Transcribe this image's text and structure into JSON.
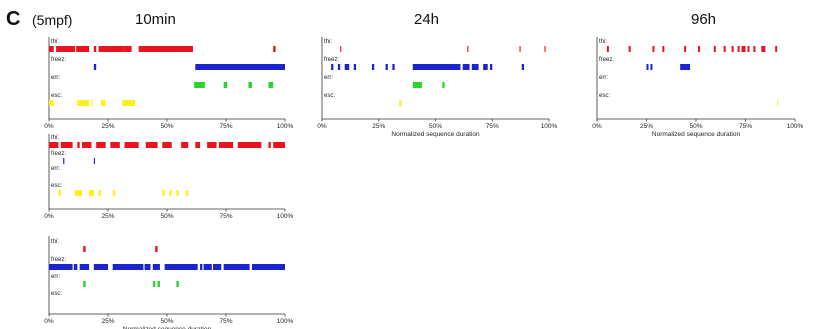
{
  "panel_letter": "C",
  "panel_subtitle": "(5mpf)",
  "column_titles": [
    "10min",
    "24h",
    "96h"
  ],
  "chart_data": [
    {
      "type": "raster",
      "row_labels": [
        "thi:",
        "freez:",
        "err:",
        "esc:"
      ],
      "xlabel": "",
      "xlim": [
        0,
        100
      ],
      "x_ticks": [
        "0%",
        "25%",
        "50%",
        "75%",
        "100%"
      ],
      "series": [
        {
          "values": [
            [
              0,
              2
            ],
            [
              3,
              11
            ],
            [
              11.5,
              17
            ],
            [
              19,
              20
            ],
            [
              21,
              31.5
            ],
            [
              31.5,
              35
            ],
            [
              38,
              61
            ],
            [
              95,
              96
            ]
          ]
        },
        {
          "values": [
            [
              19,
              20
            ],
            [
              62,
              100
            ]
          ]
        },
        {
          "values": [
            [
              61.5,
              66
            ],
            [
              74,
              75.5
            ],
            [
              84.5,
              86
            ],
            [
              93,
              95
            ]
          ]
        },
        {
          "values": [
            [
              0,
              2
            ],
            [
              12,
              17
            ],
            [
              18,
              18.5
            ],
            [
              22,
              24
            ],
            [
              31,
              36.5
            ]
          ]
        }
      ],
      "colors": [
        "#e8141e",
        "#1b25cf",
        "#2ad42a",
        "#ffef1a"
      ]
    },
    {
      "type": "raster",
      "row_labels": [
        "thi:",
        "freez:",
        "err:",
        "esc:"
      ],
      "xlabel": "Normalized sequence duration",
      "xlim": [
        0,
        100
      ],
      "x_ticks": [
        "0%",
        "25%",
        "50%",
        "75%",
        "100%"
      ],
      "series": [
        {
          "values": [
            [
              8,
              8.5
            ],
            [
              64,
              64.5
            ],
            [
              87,
              87.5
            ],
            [
              98,
              98.5
            ]
          ]
        },
        {
          "values": [
            [
              4,
              5
            ],
            [
              7,
              8
            ],
            [
              10,
              12
            ],
            [
              14,
              15
            ],
            [
              22,
              23
            ],
            [
              28,
              29
            ],
            [
              31,
              32
            ],
            [
              40,
              61
            ],
            [
              62,
              65
            ],
            [
              66,
              69
            ],
            [
              71,
              73
            ],
            [
              74,
              75
            ],
            [
              88,
              89
            ]
          ]
        },
        {
          "values": [
            [
              40,
              44
            ],
            [
              53,
              54
            ]
          ]
        },
        {
          "values": [
            [
              34,
              35
            ]
          ]
        }
      ],
      "colors": [
        "#e8141e",
        "#1b25cf",
        "#2ad42a",
        "#ffef1a"
      ]
    },
    {
      "type": "raster",
      "row_labels": [
        "thi:",
        "freez:",
        "err:",
        "esc:"
      ],
      "xlabel": "Normalized sequence duration",
      "xlim": [
        0,
        100
      ],
      "x_ticks": [
        "0%",
        "25%",
        "50%",
        "75%",
        "100%"
      ],
      "series": [
        {
          "values": [
            [
              5,
              6
            ],
            [
              16,
              17
            ],
            [
              28,
              29
            ],
            [
              33,
              34
            ],
            [
              44,
              45
            ],
            [
              51,
              52
            ],
            [
              59,
              60
            ],
            [
              64,
              65
            ],
            [
              68,
              69
            ],
            [
              71,
              72
            ],
            [
              73,
              75
            ],
            [
              76,
              77
            ],
            [
              79,
              80
            ],
            [
              83,
              85
            ],
            [
              90,
              91
            ]
          ]
        },
        {
          "values": [
            [
              25,
              26
            ],
            [
              27,
              28
            ],
            [
              42,
              47
            ]
          ]
        },
        {
          "values": []
        },
        {
          "values": [
            [
              91,
              91.5
            ]
          ]
        }
      ],
      "colors": [
        "#e8141e",
        "#1b25cf",
        "#2ad42a",
        "#ffef1a"
      ]
    },
    {
      "type": "raster",
      "row_labels": [
        "thi:",
        "freez:",
        "err:",
        "esc:"
      ],
      "xlabel": "",
      "xlim": [
        0,
        100
      ],
      "x_ticks": [
        "0%",
        "25%",
        "50%",
        "75%",
        "100%"
      ],
      "series": [
        {
          "values": [
            [
              0,
              4
            ],
            [
              5,
              10
            ],
            [
              12,
              13
            ],
            [
              14,
              18
            ],
            [
              20,
              24
            ],
            [
              26,
              30
            ],
            [
              32,
              38
            ],
            [
              41,
              42
            ],
            [
              42,
              46
            ],
            [
              48,
              52
            ],
            [
              56,
              59
            ],
            [
              62,
              64
            ],
            [
              67,
              71
            ],
            [
              72,
              78
            ],
            [
              80,
              90
            ],
            [
              93,
              94
            ],
            [
              95,
              100
            ]
          ]
        },
        {
          "values": [
            [
              6,
              6.5
            ],
            [
              19,
              19.5
            ]
          ]
        },
        {
          "values": []
        },
        {
          "values": [
            [
              4,
              5
            ],
            [
              11,
              14
            ],
            [
              17,
              19
            ],
            [
              21,
              22
            ],
            [
              27,
              28
            ],
            [
              48,
              49
            ],
            [
              51,
              52
            ],
            [
              54,
              55
            ],
            [
              58,
              59
            ]
          ]
        }
      ],
      "colors": [
        "#e8141e",
        "#1b25cf",
        "#2ad42a",
        "#ffef1a"
      ]
    },
    {
      "type": "raster",
      "row_labels": [
        "thi:",
        "freez:",
        "err:",
        "esc:"
      ],
      "xlabel": "Normalized sequence duration",
      "xlim": [
        0,
        100
      ],
      "x_ticks": [
        "0%",
        "25%",
        "50%",
        "75%",
        "100%"
      ],
      "series": [
        {
          "values": [
            [
              14.5,
              15.5
            ],
            [
              45,
              46
            ]
          ]
        },
        {
          "values": [
            [
              0,
              10
            ],
            [
              10.5,
              12
            ],
            [
              13,
              17
            ],
            [
              19,
              25
            ],
            [
              27,
              40
            ],
            [
              40.5,
              43
            ],
            [
              44,
              47
            ],
            [
              49,
              63
            ],
            [
              64,
              65
            ],
            [
              65.5,
              69
            ],
            [
              69.5,
              73
            ],
            [
              74,
              85
            ],
            [
              86,
              100
            ]
          ]
        },
        {
          "values": [
            [
              14.5,
              15.5
            ],
            [
              44,
              45
            ],
            [
              46,
              47
            ],
            [
              54,
              55
            ]
          ]
        },
        {
          "values": []
        }
      ],
      "colors": [
        "#e8141e",
        "#1b25cf",
        "#2ad42a",
        "#ffef1a"
      ]
    }
  ]
}
